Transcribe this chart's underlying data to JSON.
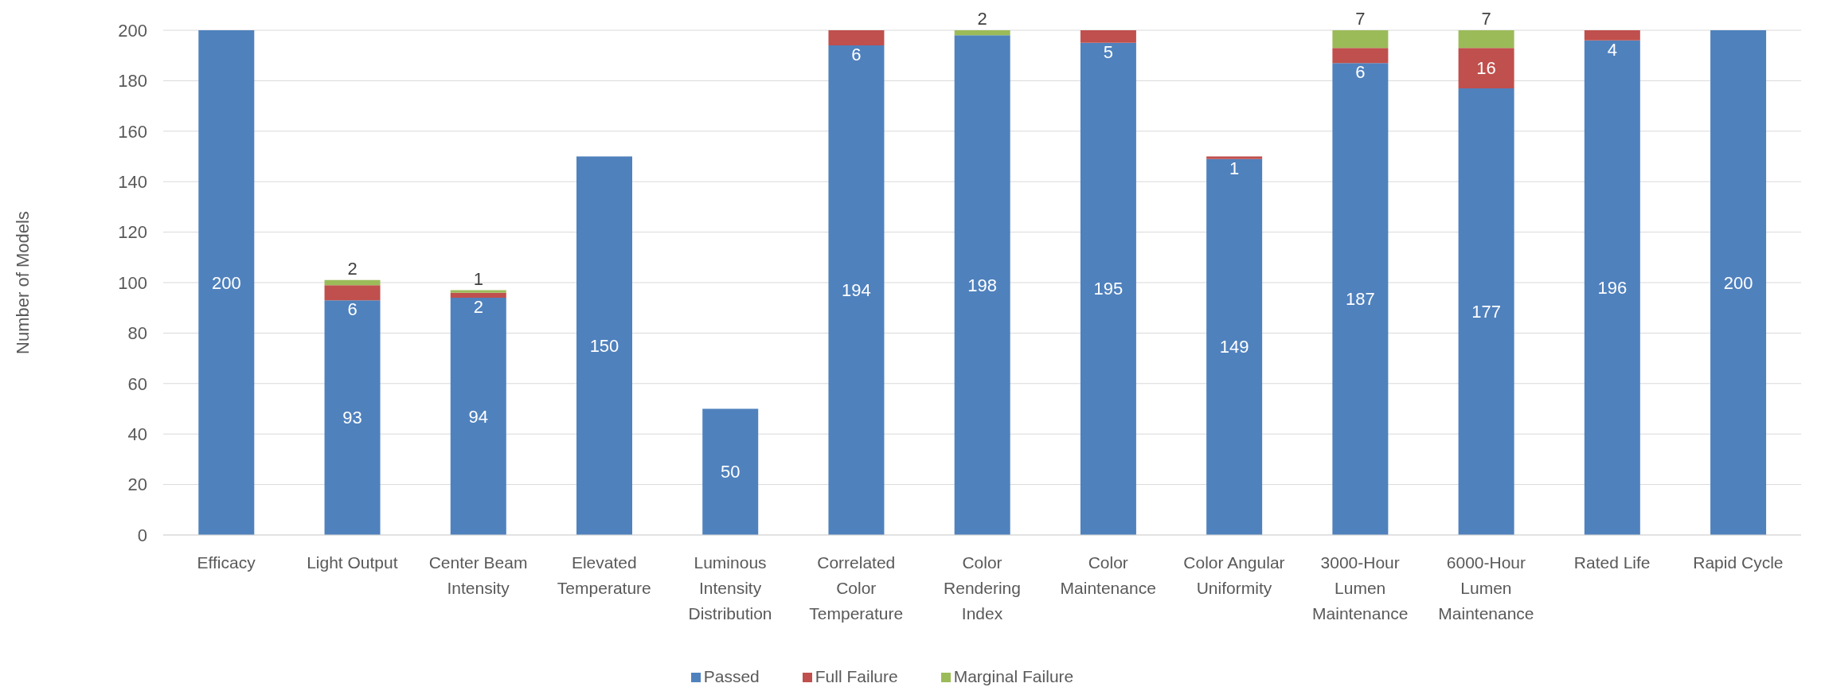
{
  "chart_data": {
    "type": "bar",
    "stacked": true,
    "ylabel": "Number of Models",
    "categories": [
      "Efficacy",
      "Light Output",
      "Center Beam Intensity",
      "Elevated Temperature",
      "Luminous Intensity Distribution",
      "Correlated Color Temperature",
      "Color Rendering Index",
      "Color Maintenance",
      "Color Angular Uniformity",
      "3000-Hour Lumen Maintenance",
      "6000-Hour Lumen Maintenance",
      "Rated Life",
      "Rapid Cycle"
    ],
    "series": [
      {
        "name": "Passed",
        "color": "#4f81bd",
        "values": [
          200,
          93,
          94,
          150,
          50,
          194,
          198,
          195,
          149,
          187,
          177,
          196,
          200
        ]
      },
      {
        "name": "Full Failure",
        "color": "#c0504d",
        "values": [
          null,
          6,
          2,
          null,
          null,
          6,
          null,
          5,
          1,
          6,
          16,
          4,
          null
        ]
      },
      {
        "name": "Marginal Failure",
        "color": "#9bbb59",
        "values": [
          null,
          2,
          1,
          null,
          null,
          null,
          2,
          null,
          null,
          7,
          7,
          null,
          null
        ]
      }
    ],
    "ylim": [
      0,
      200
    ],
    "yticks": [
      0,
      20,
      40,
      60,
      80,
      100,
      120,
      140,
      160,
      180,
      200
    ],
    "grid": "y",
    "legend": "bottom",
    "data_labels": true
  }
}
